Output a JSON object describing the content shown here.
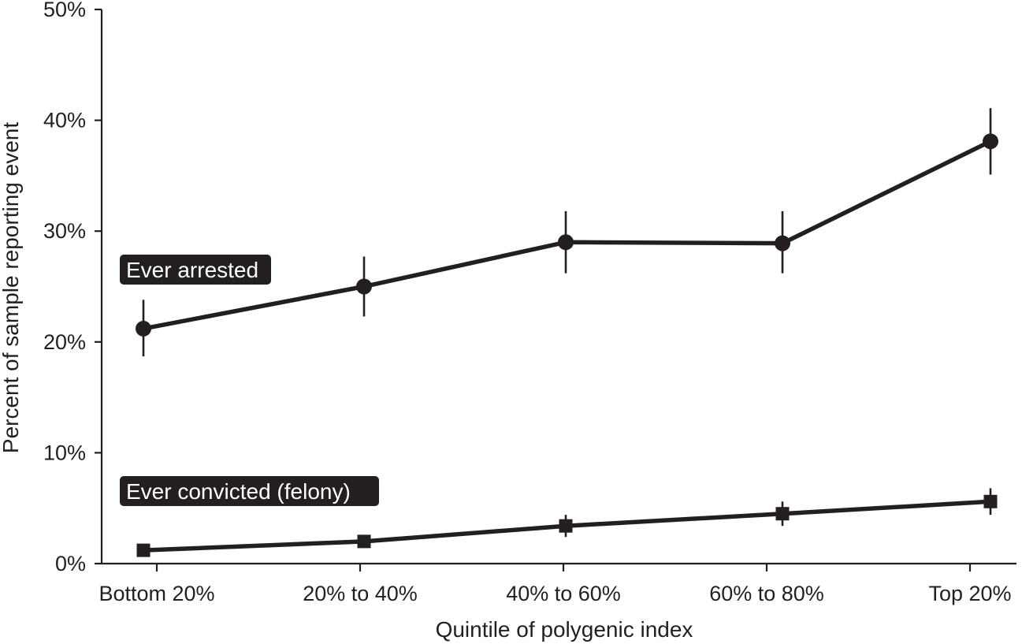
{
  "chart_data": {
    "type": "line",
    "title": "",
    "xlabel": "Quintile of polygenic index",
    "ylabel": "Percent of sample reporting event",
    "categories": [
      "Bottom 20%",
      "20% to 40%",
      "40% to 60%",
      "60% to 80%",
      "Top 20%"
    ],
    "y_ticks": [
      "0%",
      "10%",
      "20%",
      "30%",
      "40%",
      "50%"
    ],
    "ylim": [
      0,
      50
    ],
    "grid": false,
    "series": [
      {
        "name": "Ever arrested",
        "marker": "circle",
        "values": [
          21.2,
          25.0,
          29.0,
          28.9,
          38.1
        ],
        "err_low": [
          18.7,
          22.3,
          26.2,
          26.2,
          35.1
        ],
        "err_high": [
          23.8,
          27.7,
          31.8,
          31.8,
          41.1
        ]
      },
      {
        "name": "Ever convicted (felony)",
        "marker": "square",
        "values": [
          1.2,
          2.0,
          3.4,
          4.5,
          5.6
        ],
        "err_low": [
          1.0,
          1.4,
          2.4,
          3.4,
          4.4
        ],
        "err_high": [
          1.4,
          2.6,
          4.4,
          5.6,
          6.8
        ]
      }
    ]
  }
}
